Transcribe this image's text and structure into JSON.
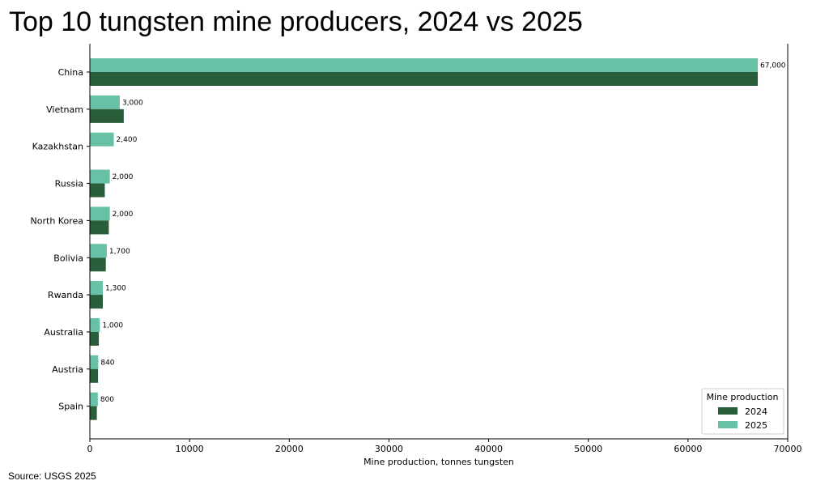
{
  "title": "Top 10 tungsten mine producers, 2024 vs 2025",
  "source": "Source: USGS 2025",
  "chart_data": {
    "type": "bar",
    "orientation": "horizontal",
    "categories": [
      "China",
      "Vietnam",
      "Kazakhstan",
      "Russia",
      "North Korea",
      "Bolivia",
      "Rwanda",
      "Australia",
      "Austria",
      "Spain"
    ],
    "series": [
      {
        "name": "2024",
        "color": "#2a5e3a",
        "values": [
          67000,
          3400,
          0,
          1500,
          1900,
          1600,
          1300,
          900,
          820,
          700
        ]
      },
      {
        "name": "2025",
        "color": "#68c0a6",
        "values": [
          67000,
          3000,
          2400,
          2000,
          2000,
          1700,
          1300,
          1000,
          840,
          800
        ]
      }
    ],
    "data_labels": [
      "67,000",
      "3,000",
      "2,400",
      "2,000",
      "2,000",
      "1,700",
      "1,300",
      "1,000",
      "840",
      "800"
    ],
    "xlabel": "Mine production, tonnes tungsten",
    "ylabel": "",
    "xlim": [
      0,
      70000
    ],
    "xticks": [
      0,
      10000,
      20000,
      30000,
      40000,
      50000,
      60000,
      70000
    ],
    "xtick_labels": [
      "0",
      "10000",
      "20000",
      "30000",
      "40000",
      "50000",
      "60000",
      "70000"
    ],
    "grid": false,
    "legend": {
      "title": "Mine production",
      "placement": "lower-right"
    }
  }
}
